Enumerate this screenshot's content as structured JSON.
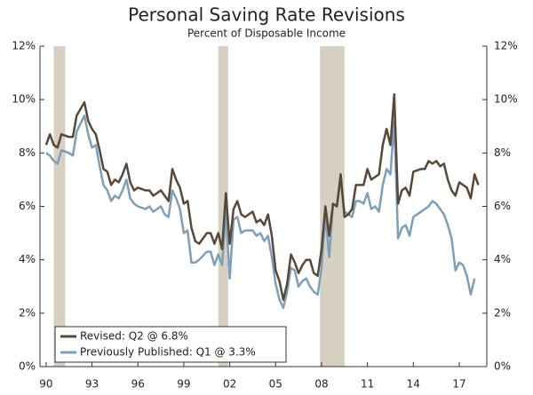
{
  "chart_data": {
    "type": "line",
    "title": "Personal Saving Rate Revisions",
    "subtitle": "Percent of Disposable Income",
    "x": [
      1990.0,
      1990.25,
      1990.5,
      1990.75,
      1991.0,
      1991.5,
      1991.75,
      1992.0,
      1992.5,
      1992.75,
      1993.0,
      1993.25,
      1993.5,
      1993.75,
      1994.0,
      1994.25,
      1994.5,
      1994.75,
      1995.0,
      1995.25,
      1995.5,
      1995.75,
      1996.0,
      1996.5,
      1996.75,
      1997.0,
      1997.5,
      1997.75,
      1998.0,
      1998.25,
      1998.5,
      1998.75,
      1999.0,
      1999.25,
      1999.5,
      1999.75,
      2000.0,
      2000.5,
      2000.75,
      2001.0,
      2001.25,
      2001.5,
      2001.75,
      2002.0,
      2002.25,
      2002.5,
      2002.75,
      2003.0,
      2003.5,
      2003.75,
      2004.0,
      2004.25,
      2004.5,
      2004.75,
      2005.0,
      2005.25,
      2005.5,
      2005.75,
      2006.0,
      2006.25,
      2006.5,
      2006.75,
      2007.0,
      2007.25,
      2007.5,
      2007.75,
      2008.0,
      2008.25,
      2008.5,
      2008.75,
      2009.0,
      2009.25,
      2009.5,
      2009.75,
      2010.0,
      2010.25,
      2010.5,
      2010.75,
      2011.0,
      2011.25,
      2011.5,
      2011.75,
      2012.0,
      2012.25,
      2012.5,
      2012.75,
      2013.0,
      2013.25,
      2013.5,
      2013.75,
      2014.0,
      2014.5,
      2014.75,
      2015.0,
      2015.25,
      2015.5,
      2015.75,
      2016.0,
      2016.25,
      2016.5,
      2016.75,
      2017.0,
      2017.25,
      2017.5,
      2017.75,
      2018.0,
      2018.25
    ],
    "series": [
      {
        "name": "Revised: Q2 @ 6.8%",
        "color": "#57483a",
        "values": [
          8.3,
          8.7,
          8.3,
          8.2,
          8.7,
          8.6,
          8.6,
          9.4,
          9.9,
          9.2,
          8.9,
          8.7,
          8.1,
          7.4,
          7.3,
          6.8,
          7.0,
          6.9,
          7.2,
          7.6,
          6.9,
          6.6,
          6.7,
          6.6,
          6.6,
          6.4,
          6.6,
          6.4,
          6.2,
          7.4,
          7.0,
          6.7,
          6.1,
          6.2,
          5.2,
          4.7,
          4.6,
          5.0,
          5.0,
          4.6,
          5.0,
          4.4,
          6.5,
          4.6,
          5.9,
          6.2,
          5.7,
          5.6,
          5.8,
          5.4,
          5.5,
          5.3,
          5.7,
          4.9,
          3.6,
          3.2,
          2.5,
          3.1,
          4.2,
          3.9,
          3.5,
          3.8,
          4.0,
          4.0,
          3.5,
          3.4,
          4.4,
          6.0,
          4.9,
          6.1,
          6.0,
          7.2,
          5.6,
          5.7,
          5.9,
          6.8,
          6.8,
          6.8,
          7.4,
          7.0,
          7.1,
          7.2,
          8.3,
          8.9,
          8.3,
          10.2,
          6.1,
          6.6,
          6.7,
          6.4,
          7.3,
          7.4,
          7.4,
          7.7,
          7.6,
          7.7,
          7.5,
          7.6,
          7.0,
          6.6,
          6.4,
          6.9,
          6.8,
          6.7,
          6.3,
          7.2,
          6.8
        ]
      },
      {
        "name": "Previously Published: Q1 @ 3.3%",
        "color": "#7f9fb8",
        "values": [
          8.0,
          7.9,
          7.7,
          7.6,
          8.1,
          8.0,
          7.9,
          8.8,
          9.4,
          8.7,
          8.2,
          8.3,
          7.5,
          6.8,
          6.6,
          6.2,
          6.4,
          6.3,
          6.6,
          7.0,
          6.3,
          6.1,
          6.0,
          5.9,
          6.0,
          5.8,
          6.0,
          5.7,
          5.6,
          6.6,
          6.3,
          5.9,
          5.0,
          5.1,
          3.9,
          3.9,
          4.0,
          4.3,
          4.3,
          3.8,
          4.2,
          3.8,
          5.8,
          3.3,
          5.5,
          5.6,
          5.0,
          5.1,
          5.1,
          4.9,
          5.0,
          4.7,
          4.9,
          4.1,
          3.1,
          2.5,
          2.2,
          2.8,
          3.7,
          3.6,
          3.0,
          3.2,
          3.3,
          3.0,
          2.8,
          2.7,
          3.7,
          5.7,
          4.1,
          6.1,
          6.0,
          7.0,
          5.8,
          5.7,
          5.6,
          6.2,
          6.2,
          6.1,
          6.5,
          5.9,
          6.0,
          5.8,
          6.8,
          7.4,
          7.2,
          9.2,
          4.8,
          5.2,
          5.3,
          4.9,
          5.6,
          5.8,
          5.9,
          6.0,
          6.2,
          6.1,
          5.9,
          5.7,
          5.3,
          4.8,
          3.6,
          3.9,
          3.8,
          3.4,
          2.7,
          3.3,
          null
        ]
      }
    ],
    "recessions": [
      [
        1990.5,
        1991.25
      ],
      [
        2001.25,
        2001.9
      ],
      [
        2007.9,
        2009.5
      ]
    ],
    "recession_color": "#d6d0c3",
    "xlim": [
      1989.6,
      2018.8
    ],
    "xticks": [
      {
        "value": 1990,
        "label": "90"
      },
      {
        "value": 1993,
        "label": "93"
      },
      {
        "value": 1996,
        "label": "96"
      },
      {
        "value": 1999,
        "label": "99"
      },
      {
        "value": 2002,
        "label": "02"
      },
      {
        "value": 2005,
        "label": "05"
      },
      {
        "value": 2008,
        "label": "08"
      },
      {
        "value": 2011,
        "label": "11"
      },
      {
        "value": 2014,
        "label": "14"
      },
      {
        "value": 2017,
        "label": "17"
      }
    ],
    "ylim": [
      0,
      12
    ],
    "yticks": [
      {
        "value": 0,
        "label": "0%"
      },
      {
        "value": 2,
        "label": "2%"
      },
      {
        "value": 4,
        "label": "4%"
      },
      {
        "value": 6,
        "label": "6%"
      },
      {
        "value": 8,
        "label": "8%"
      },
      {
        "value": 10,
        "label": "10%"
      },
      {
        "value": 12,
        "label": "12%"
      }
    ],
    "y2lim": [
      0,
      12
    ],
    "y2ticks": [
      {
        "value": 0,
        "label": "0%"
      },
      {
        "value": 2,
        "label": "2%"
      },
      {
        "value": 4,
        "label": "4%"
      },
      {
        "value": 6,
        "label": "6%"
      },
      {
        "value": 8,
        "label": "8%"
      },
      {
        "value": 10,
        "label": "10%"
      },
      {
        "value": 12,
        "label": "12%"
      }
    ],
    "legend": "lower left",
    "grid": false
  }
}
